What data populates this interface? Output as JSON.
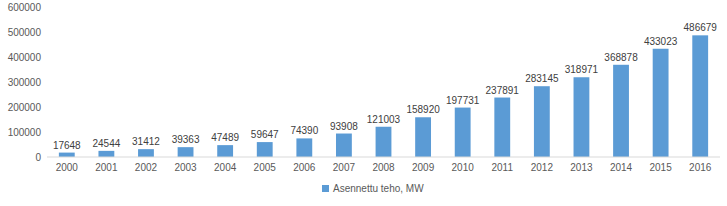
{
  "chart_data": {
    "type": "bar",
    "categories": [
      "2000",
      "2001",
      "2002",
      "2003",
      "2004",
      "2005",
      "2006",
      "2007",
      "2008",
      "2009",
      "2010",
      "2011",
      "2012",
      "2013",
      "2014",
      "2015",
      "2016"
    ],
    "series": [
      {
        "name": "Asennettu teho, MW",
        "color": "#5b9bd5",
        "values": [
          17648,
          24544,
          31412,
          39363,
          47489,
          59647,
          74390,
          93908,
          121003,
          158920,
          197731,
          237891,
          283145,
          318971,
          368878,
          433023,
          486679
        ]
      }
    ],
    "ylim": [
      0,
      600000
    ],
    "yticks": [
      0,
      100000,
      200000,
      300000,
      400000,
      500000,
      600000
    ],
    "grid": false,
    "legend": "bottom",
    "data_labels": true
  }
}
